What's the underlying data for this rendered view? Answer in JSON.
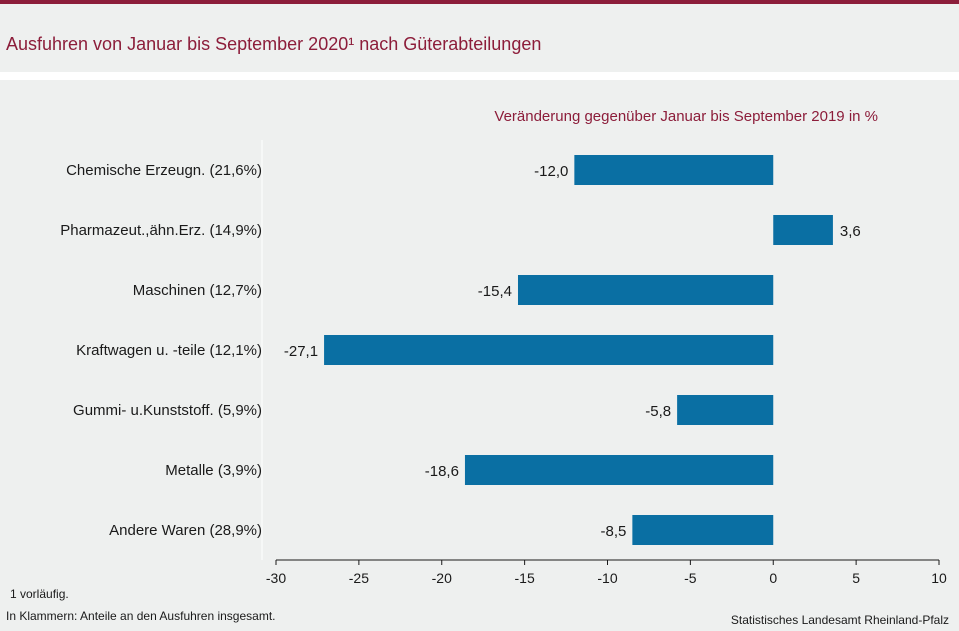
{
  "title": "Ausfuhren von Januar bis September 2020¹ nach Güterabteilungen",
  "chart_data": {
    "type": "bar",
    "orientation": "horizontal",
    "subtitle": "Veränderung gegenüber Januar bis September 2019 in %",
    "categories": [
      "Chemische Erzeugn. (21,6%)",
      "Pharmazeut.,ähn.Erz. (14,9%)",
      "Maschinen (12,7%)",
      "Kraftwagen u. -teile (12,1%)",
      "Gummi- u.Kunststoff. (5,9%)",
      "Metalle (3,9%)",
      "Andere Waren (28,9%)"
    ],
    "values": [
      -12.0,
      3.6,
      -15.4,
      -27.1,
      -5.8,
      -18.6,
      -8.5
    ],
    "value_labels": [
      "-12,0",
      "3,6",
      "-15,4",
      "-27,1",
      "-5,8",
      "-18,6",
      "-8,5"
    ],
    "xlim": [
      -30,
      10
    ],
    "xticks": [
      -30,
      -25,
      -20,
      -15,
      -10,
      -5,
      0,
      5,
      10
    ],
    "bar_color": "#0a6fa3",
    "grid": false
  },
  "footnotes": {
    "note1": "1 vorläufig.",
    "note2": "In Klammern: Anteile an den Ausfuhren insgesamt.",
    "source": "Statistisches Landesamt Rheinland-Pfalz"
  }
}
